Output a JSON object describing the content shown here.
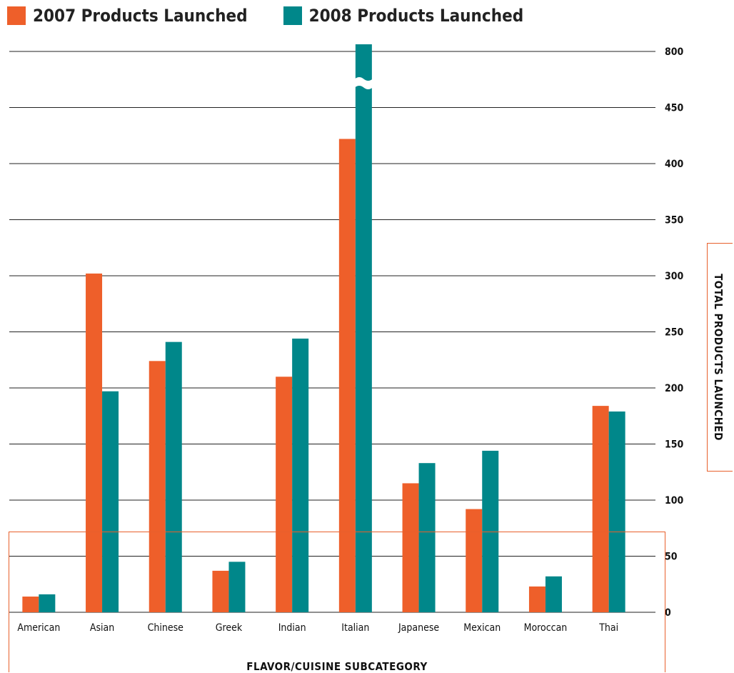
{
  "chart_data": {
    "type": "bar",
    "title": "",
    "xlabel": "FLAVOR/CUISINE SUBCATEGORY",
    "ylabel": "TOTAL PRODUCTS LAUNCHED",
    "categories": [
      "American",
      "Asian",
      "Chinese",
      "Greek",
      "Indian",
      "Italian",
      "Japanese",
      "Mexican",
      "Moroccan",
      "Thai"
    ],
    "series": [
      {
        "name": "2007 Products Launched",
        "color": "#ee5f2a",
        "values": [
          14,
          302,
          224,
          37,
          210,
          422,
          115,
          92,
          23,
          184
        ]
      },
      {
        "name": "2008 Products Launched",
        "color": "#00878a",
        "values": [
          16,
          197,
          241,
          45,
          244,
          800,
          133,
          144,
          32,
          179
        ]
      }
    ],
    "yticks": [
      "0",
      "50",
      "100",
      "150",
      "200",
      "250",
      "300",
      "350",
      "400",
      "450",
      "800"
    ],
    "ylim": [
      0,
      800
    ],
    "axis_break": "between 450 and 800",
    "grid": true,
    "legend_position": "top-left",
    "colors": {
      "accent_border": "#e8602c",
      "gridline": "#222222"
    }
  }
}
